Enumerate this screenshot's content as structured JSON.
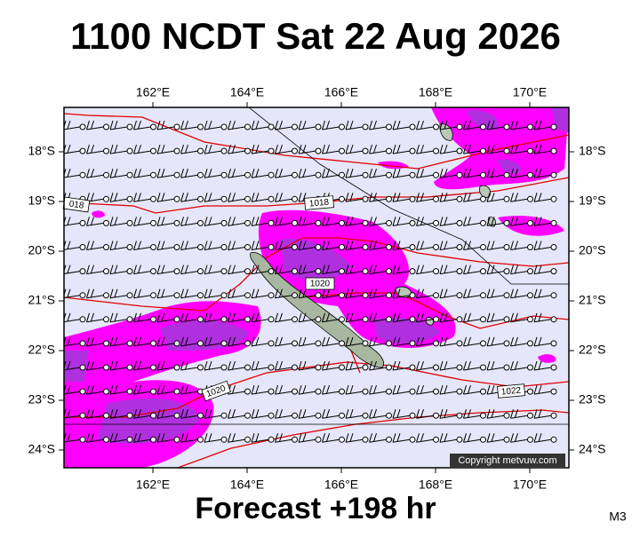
{
  "title": "1100 NCDT Sat 22 Aug 2026",
  "forecast": "Forecast +198 hr",
  "model": "M3",
  "copyright": "Copyright metvuw.com",
  "axes": {
    "top": [
      "162°E",
      "164°E",
      "166°E",
      "168°E",
      "170°E"
    ],
    "bottom": [
      "162°E",
      "164°E",
      "166°E",
      "168°E",
      "170°E"
    ],
    "left": [
      "18°S",
      "19°S",
      "20°S",
      "21°S",
      "22°S",
      "23°S",
      "24°S"
    ],
    "right": [
      "18°S",
      "19°S",
      "20°S",
      "21°S",
      "22°S",
      "23°S",
      "24°S"
    ]
  },
  "isobar_labels": [
    "018",
    "1018",
    "1020",
    "1020",
    "1022"
  ]
}
